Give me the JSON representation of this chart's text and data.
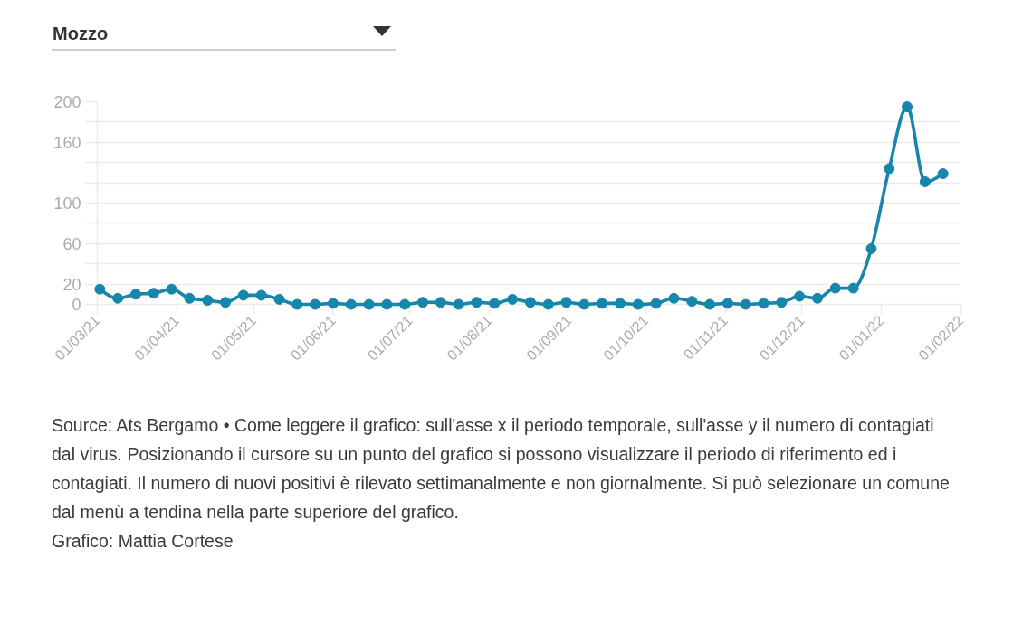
{
  "chart_data": {
    "type": "line",
    "title": "Mozzo",
    "x": [
      "2021-03-02",
      "2021-03-09",
      "2021-03-16",
      "2021-03-23",
      "2021-03-30",
      "2021-04-06",
      "2021-04-13",
      "2021-04-20",
      "2021-04-27",
      "2021-05-04",
      "2021-05-11",
      "2021-05-18",
      "2021-05-25",
      "2021-06-01",
      "2021-06-08",
      "2021-06-15",
      "2021-06-22",
      "2021-06-29",
      "2021-07-06",
      "2021-07-13",
      "2021-07-20",
      "2021-07-27",
      "2021-08-03",
      "2021-08-10",
      "2021-08-17",
      "2021-08-24",
      "2021-08-31",
      "2021-09-07",
      "2021-09-14",
      "2021-09-21",
      "2021-09-28",
      "2021-10-05",
      "2021-10-12",
      "2021-10-19",
      "2021-10-26",
      "2021-11-02",
      "2021-11-09",
      "2021-11-16",
      "2021-11-23",
      "2021-11-30",
      "2021-12-07",
      "2021-12-14",
      "2021-12-21",
      "2021-12-28",
      "2022-01-04",
      "2022-01-11",
      "2022-01-18",
      "2022-01-25"
    ],
    "series": [
      {
        "color": "#1786ab",
        "values": [
          15,
          6,
          10,
          11,
          15,
          6,
          4,
          2,
          9,
          9,
          5,
          0,
          0,
          1,
          0,
          0,
          0,
          0,
          2,
          2,
          0,
          2,
          1,
          5,
          2,
          0,
          2,
          0,
          1,
          1,
          0,
          1,
          6,
          3,
          0,
          1,
          0,
          1,
          2,
          8,
          6,
          16,
          16,
          55,
          134,
          195,
          121,
          129
        ]
      }
    ],
    "xlim": [
      "2021-03-01",
      "2022-02-01"
    ],
    "xticks": [
      {
        "value": "2021-03-01",
        "label": "01/03/21"
      },
      {
        "value": "2021-04-01",
        "label": "01/04/21"
      },
      {
        "value": "2021-05-01",
        "label": "01/05/21"
      },
      {
        "value": "2021-06-01",
        "label": "01/06/21"
      },
      {
        "value": "2021-07-01",
        "label": "01/07/21"
      },
      {
        "value": "2021-08-01",
        "label": "01/08/21"
      },
      {
        "value": "2021-09-01",
        "label": "01/09/21"
      },
      {
        "value": "2021-10-01",
        "label": "01/10/21"
      },
      {
        "value": "2021-11-01",
        "label": "01/11/21"
      },
      {
        "value": "2021-12-01",
        "label": "01/12/21"
      },
      {
        "value": "2022-01-01",
        "label": "01/01/22"
      },
      {
        "value": "2022-02-01",
        "label": "01/02/22"
      }
    ],
    "ylim": [
      0,
      200
    ],
    "yticks": [
      0,
      20,
      {
        "value": 40,
        "label": null
      },
      60,
      {
        "value": 80,
        "label": null
      },
      100,
      {
        "value": 120,
        "label": null
      },
      {
        "value": 140,
        "label": null
      },
      160,
      {
        "value": 180,
        "label": null
      },
      200
    ],
    "grid": "y",
    "marker": "circle",
    "line_style": "solid",
    "annotations": [
      "Source: Ats Bergamo • Come leggere il grafico: sull'asse x il periodo temporale, sull'asse y il numero di contagiati dal virus. Posizionando il cursore su un punto del grafico si possono visualizzare il periodo di riferimento ed i contagiati. Il numero di nuovi positivi è rilevato settimanalmente e non giornalmente. Si può selezionare un comune dal menù a tendina nella parte superiore del grafico.",
      "Grafico: Mattia Cortese"
    ]
  }
}
